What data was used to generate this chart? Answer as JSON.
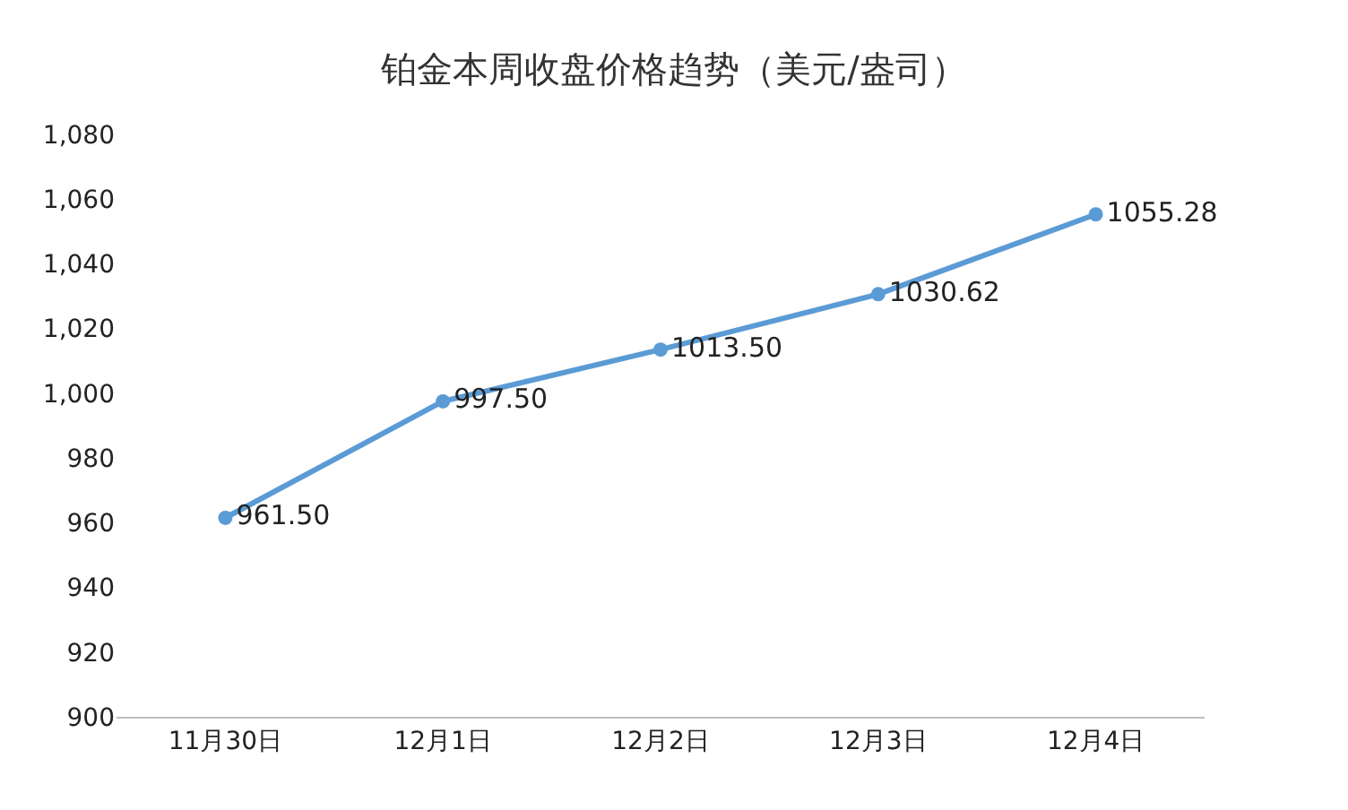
{
  "chart_data": {
    "type": "line",
    "title": "铂金本周收盘价格趋势（美元/盎司）",
    "categories": [
      "11月30日",
      "12月1日",
      "12月2日",
      "12月3日",
      "12月4日"
    ],
    "series": [
      {
        "color": "#5b9bd5",
        "values": [
          961.5,
          997.5,
          1013.5,
          1030.62,
          1055.28
        ],
        "value_labels": [
          "961.50",
          "997.50",
          "1013.50",
          "1030.62",
          "1055.28"
        ]
      }
    ],
    "ylim": [
      900,
      1080
    ],
    "yticks": [
      {
        "value": 900,
        "label": "900"
      },
      {
        "value": 920,
        "label": "920"
      },
      {
        "value": 940,
        "label": "940"
      },
      {
        "value": 960,
        "label": "960"
      },
      {
        "value": 980,
        "label": "980"
      },
      {
        "value": 1000,
        "label": "1,000"
      },
      {
        "value": 1020,
        "label": "1,020"
      },
      {
        "value": 1040,
        "label": "1,040"
      },
      {
        "value": 1060,
        "label": "1,060"
      },
      {
        "value": 1080,
        "label": "1,080"
      }
    ],
    "grid": false,
    "marker": "circle",
    "line_style": "solid"
  }
}
